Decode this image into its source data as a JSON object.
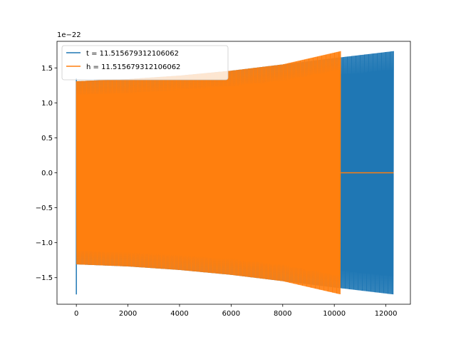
{
  "chart_data": {
    "type": "line",
    "title": "",
    "xlabel": "",
    "ylabel": "",
    "y_offset_label": "1e−22",
    "y_scale": 1e-22,
    "xlim": [
      -750,
      12950
    ],
    "ylim": [
      -1.88,
      1.88
    ],
    "x_ticks": [
      0,
      2000,
      4000,
      6000,
      8000,
      10000,
      12000
    ],
    "x_tick_labels": [
      "0",
      "2000",
      "4000",
      "6000",
      "8000",
      "10000",
      "12000"
    ],
    "y_ticks": [
      -1.5,
      -1.0,
      -0.5,
      0.0,
      0.5,
      1.0,
      1.5
    ],
    "y_tick_labels": [
      "−1.5",
      "−1.0",
      "−0.5",
      "0.0",
      "0.5",
      "1.0",
      "1.5"
    ],
    "grid": false,
    "legend_position": "top-left",
    "series": [
      {
        "name": "t = 11.515679312106062",
        "color": "#1f77b4",
        "x_range": [
          0,
          12300
        ],
        "envelope_x": [
          0,
          2000,
          4000,
          6000,
          8000,
          10000,
          12300
        ],
        "envelope_amplitude": [
          1.31,
          1.34,
          1.39,
          1.46,
          1.55,
          1.64,
          1.74
        ],
        "initial_spike": {
          "x": 0,
          "min": -1.74,
          "max": 1.35
        }
      },
      {
        "name": "h = 11.515679312106062",
        "color": "#ff7f0e",
        "x_range": [
          0,
          10250
        ],
        "envelope_x": [
          0,
          2000,
          4000,
          6000,
          8000,
          10250
        ],
        "envelope_amplitude": [
          1.31,
          1.34,
          1.39,
          1.46,
          1.55,
          1.74
        ],
        "tail_x_range": [
          10250,
          12300
        ],
        "tail_value": 0.0
      }
    ]
  }
}
